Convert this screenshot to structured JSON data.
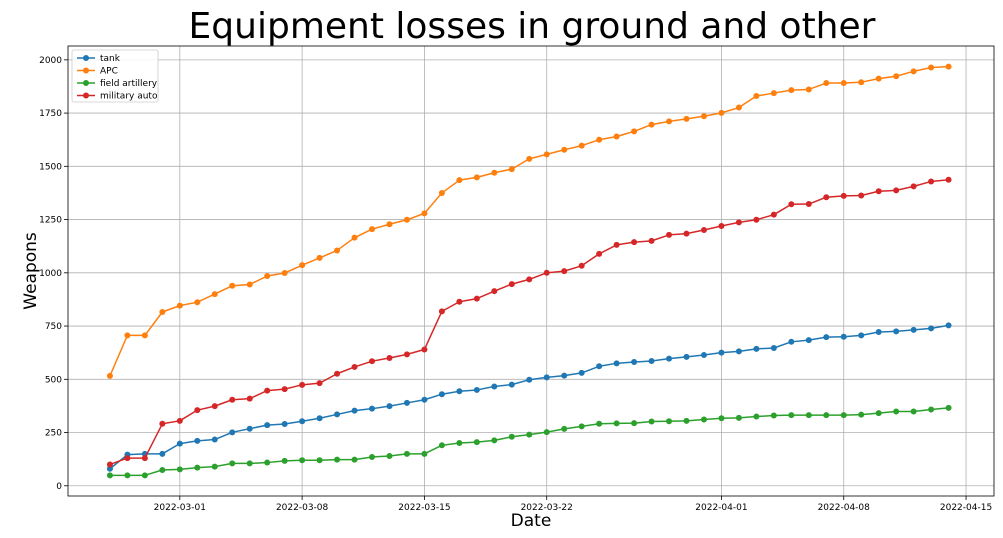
{
  "chart_data": {
    "type": "line",
    "title": "Equipment losses in ground and other",
    "xlabel": "Date",
    "ylabel": "Weapons",
    "grid": true,
    "legend_position": "top-left",
    "x_start": "2022-02-25",
    "x_tick_labels": [
      "2022-03-01",
      "2022-03-08",
      "2022-03-15",
      "2022-03-22",
      "2022-04-01",
      "2022-04-08",
      "2022-04-15"
    ],
    "x_tick_day_offsets": [
      4,
      11,
      18,
      25,
      35,
      42,
      49
    ],
    "xlim_day_offsets": [
      -2.4,
      50.6
    ],
    "y_ticks": [
      0,
      250,
      500,
      750,
      1000,
      1250,
      1500,
      1750,
      2000
    ],
    "y_tick_labels": [
      "0",
      "250",
      "500",
      "750",
      "1000",
      "1250",
      "1500",
      "1750",
      "2000"
    ],
    "ylim": [
      -48,
      2065
    ],
    "series": [
      {
        "name": "tank",
        "color": "#1f77b4",
        "values": [
          80,
          146,
          150,
          150,
          198,
          211,
          217,
          251,
          268,
          285,
          290,
          303,
          317,
          335,
          353,
          362,
          374,
          389,
          404,
          430,
          444,
          450,
          466,
          475,
          498,
          509,
          517,
          530,
          561,
          575,
          581,
          586,
          597,
          605,
          614,
          625,
          631,
          643,
          647,
          676,
          684,
          698,
          700,
          706,
          722,
          725,
          732,
          739,
          753
        ]
      },
      {
        "name": "APC",
        "color": "#ff7f0e",
        "values": [
          516,
          706,
          706,
          816,
          846,
          862,
          900,
          939,
          945,
          985,
          999,
          1036,
          1070,
          1105,
          1165,
          1205,
          1228,
          1249,
          1279,
          1375,
          1435,
          1448,
          1470,
          1487,
          1535,
          1556,
          1578,
          1597,
          1625,
          1640,
          1664,
          1696,
          1711,
          1723,
          1735,
          1751,
          1776,
          1830,
          1844,
          1858,
          1861,
          1891,
          1891,
          1895,
          1912,
          1923,
          1946,
          1964,
          1968
        ]
      },
      {
        "name": "field artillery",
        "color": "#2ca02c",
        "values": [
          49,
          49,
          49,
          74,
          77,
          85,
          90,
          105,
          105,
          109,
          117,
          120,
          120,
          123,
          123,
          135,
          140,
          150,
          150,
          190,
          201,
          205,
          213,
          230,
          240,
          252,
          267,
          279,
          291,
          293,
          294,
          302,
          303,
          305,
          311,
          317,
          319,
          325,
          330,
          332,
          332,
          332,
          332,
          334,
          341,
          349,
          349,
          358,
          366
        ]
      },
      {
        "name": "military auto",
        "color": "#d62728",
        "values": [
          100,
          130,
          130,
          291,
          305,
          355,
          374,
          404,
          409,
          447,
          454,
          474,
          482,
          526,
          558,
          585,
          600,
          617,
          640,
          819,
          864,
          879,
          914,
          947,
          969,
          1000,
          1008,
          1033,
          1089,
          1131,
          1144,
          1150,
          1178,
          1184,
          1201,
          1220,
          1237,
          1249,
          1273,
          1322,
          1323,
          1355,
          1361,
          1363,
          1383,
          1387,
          1406,
          1429,
          1437
        ]
      }
    ]
  }
}
